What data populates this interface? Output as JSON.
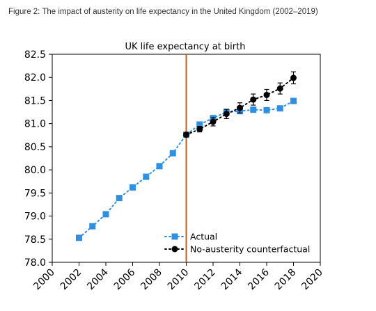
{
  "caption": "Figure 2: The impact of austerity on life expectancy in the United Kingdom (2002–2019)",
  "chart_data": {
    "type": "scatter",
    "title": "UK life expectancy at birth",
    "xlabel": "",
    "ylabel": "",
    "xlim": [
      2000,
      2020
    ],
    "ylim": [
      78.0,
      82.5
    ],
    "x_ticks": [
      "2000",
      "2002",
      "2004",
      "2006",
      "2008",
      "2010",
      "2012",
      "2014",
      "2016",
      "2018",
      "2020"
    ],
    "y_ticks": [
      "78.0",
      "78.5",
      "79.0",
      "79.5",
      "80.0",
      "80.5",
      "81.0",
      "81.5",
      "82.0",
      "82.5"
    ],
    "grid": false,
    "legend_position": "bottom-center",
    "vertical_line": {
      "x": 2010,
      "color": "#c0611a"
    },
    "series": [
      {
        "name": "Actual",
        "color": "#2f8fe0",
        "marker": "square",
        "line": "dotted",
        "x": [
          2002,
          2003,
          2004,
          2005,
          2006,
          2007,
          2008,
          2009,
          2010,
          2011,
          2012,
          2013,
          2014,
          2015,
          2016,
          2017,
          2018
        ],
        "y": [
          78.53,
          78.78,
          79.04,
          79.39,
          79.62,
          79.85,
          80.08,
          80.36,
          80.76,
          80.98,
          81.12,
          81.25,
          81.27,
          81.3,
          81.29,
          81.33,
          81.49
        ]
      },
      {
        "name": "No-austerity counterfactual",
        "color": "#000000",
        "marker": "circle",
        "line": "dotted",
        "x": [
          2010,
          2011,
          2012,
          2013,
          2014,
          2015,
          2016,
          2017,
          2018
        ],
        "y": [
          80.76,
          80.88,
          81.04,
          81.21,
          81.34,
          81.52,
          81.62,
          81.76,
          81.99
        ],
        "yerr": [
          0.04,
          0.06,
          0.09,
          0.1,
          0.11,
          0.12,
          0.12,
          0.12,
          0.13
        ]
      }
    ]
  }
}
